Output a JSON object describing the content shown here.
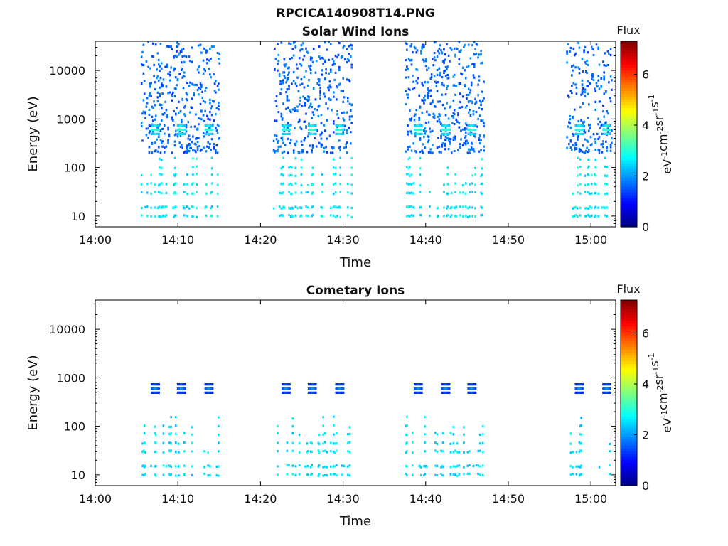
{
  "figure": {
    "title": "RPCICA140908T14.PNG"
  },
  "chart_data": [
    {
      "type": "heatmap",
      "title": "Solar Wind Ions",
      "xlabel": "Time",
      "ylabel": "Energy (eV)",
      "y_scale": "log",
      "ylim": [
        6,
        40000
      ],
      "xlim": [
        "14:00",
        "15:03"
      ],
      "x_ticks": [
        "14:00",
        "14:10",
        "14:20",
        "14:30",
        "14:40",
        "14:50",
        "15:00"
      ],
      "y_ticks": [
        "10",
        "100",
        "1000",
        "10000"
      ],
      "colorbar": {
        "label": "Flux",
        "units": "eV⁻¹cm⁻²sr⁻¹s⁻¹",
        "range": [
          0,
          7.3
        ],
        "ticks": [
          "0",
          "2",
          "4",
          "6"
        ],
        "colormap": "jet"
      },
      "sweep_windows": [
        {
          "start": "14:05:30",
          "end": "14:15:00"
        },
        {
          "start": "14:21:30",
          "end": "14:31:00"
        },
        {
          "start": "14:37:30",
          "end": "14:47:00"
        },
        {
          "start": "14:57:00",
          "end": "15:02:30"
        }
      ],
      "peaks": [
        {
          "time": "14:07:10",
          "energy": 600,
          "flux": 3.3
        },
        {
          "time": "14:10:20",
          "energy": 600,
          "flux": 3.3
        },
        {
          "time": "14:13:40",
          "energy": 600,
          "flux": 3.3
        },
        {
          "time": "14:23:00",
          "energy": 600,
          "flux": 3.3
        },
        {
          "time": "14:26:10",
          "energy": 600,
          "flux": 3.3
        },
        {
          "time": "14:29:30",
          "energy": 600,
          "flux": 3.3
        },
        {
          "time": "14:39:00",
          "energy": 600,
          "flux": 3.3
        },
        {
          "time": "14:42:20",
          "energy": 600,
          "flux": 3.3
        },
        {
          "time": "14:45:30",
          "energy": 600,
          "flux": 3.3
        },
        {
          "time": "14:58:30",
          "energy": 600,
          "flux": 3.3
        },
        {
          "time": "15:01:50",
          "energy": 600,
          "flux": 3.3
        }
      ],
      "background_flux_range": [
        1.3,
        2.0
      ],
      "low_energy_flux_range": [
        2.3,
        2.9
      ]
    },
    {
      "type": "heatmap",
      "title": "Cometary Ions",
      "xlabel": "Time",
      "ylabel": "Energy (eV)",
      "y_scale": "log",
      "ylim": [
        6,
        40000
      ],
      "xlim": [
        "14:00",
        "15:03"
      ],
      "x_ticks": [
        "14:00",
        "14:10",
        "14:20",
        "14:30",
        "14:40",
        "14:50",
        "15:00"
      ],
      "y_ticks": [
        "10",
        "100",
        "1000",
        "10000"
      ],
      "colorbar": {
        "label": "Flux",
        "units": "eV⁻¹cm⁻²sr⁻¹s⁻¹",
        "range": [
          0,
          7.3
        ],
        "ticks": [
          "0",
          "2",
          "4",
          "6"
        ],
        "colormap": "jet"
      },
      "sweep_windows": [
        {
          "start": "14:05:30",
          "end": "14:15:00"
        },
        {
          "start": "14:21:30",
          "end": "14:31:00"
        },
        {
          "start": "14:37:30",
          "end": "14:47:00"
        },
        {
          "start": "14:57:00",
          "end": "15:02:30"
        }
      ],
      "peaks": [
        {
          "time": "14:07:10",
          "energy": 600,
          "flux": 2.0
        },
        {
          "time": "14:10:20",
          "energy": 600,
          "flux": 2.0
        },
        {
          "time": "14:13:40",
          "energy": 600,
          "flux": 2.0
        },
        {
          "time": "14:23:00",
          "energy": 600,
          "flux": 2.0
        },
        {
          "time": "14:26:10",
          "energy": 600,
          "flux": 2.0
        },
        {
          "time": "14:29:30",
          "energy": 600,
          "flux": 2.0
        },
        {
          "time": "14:39:00",
          "energy": 600,
          "flux": 2.0
        },
        {
          "time": "14:42:20",
          "energy": 600,
          "flux": 2.0
        },
        {
          "time": "14:45:30",
          "energy": 600,
          "flux": 2.0
        },
        {
          "time": "14:58:30",
          "energy": 600,
          "flux": 2.0
        },
        {
          "time": "15:01:50",
          "energy": 600,
          "flux": 2.0
        }
      ],
      "background_flux_range": [
        1.2,
        1.6
      ],
      "low_energy_flux_range": [
        2.2,
        2.8
      ]
    }
  ]
}
